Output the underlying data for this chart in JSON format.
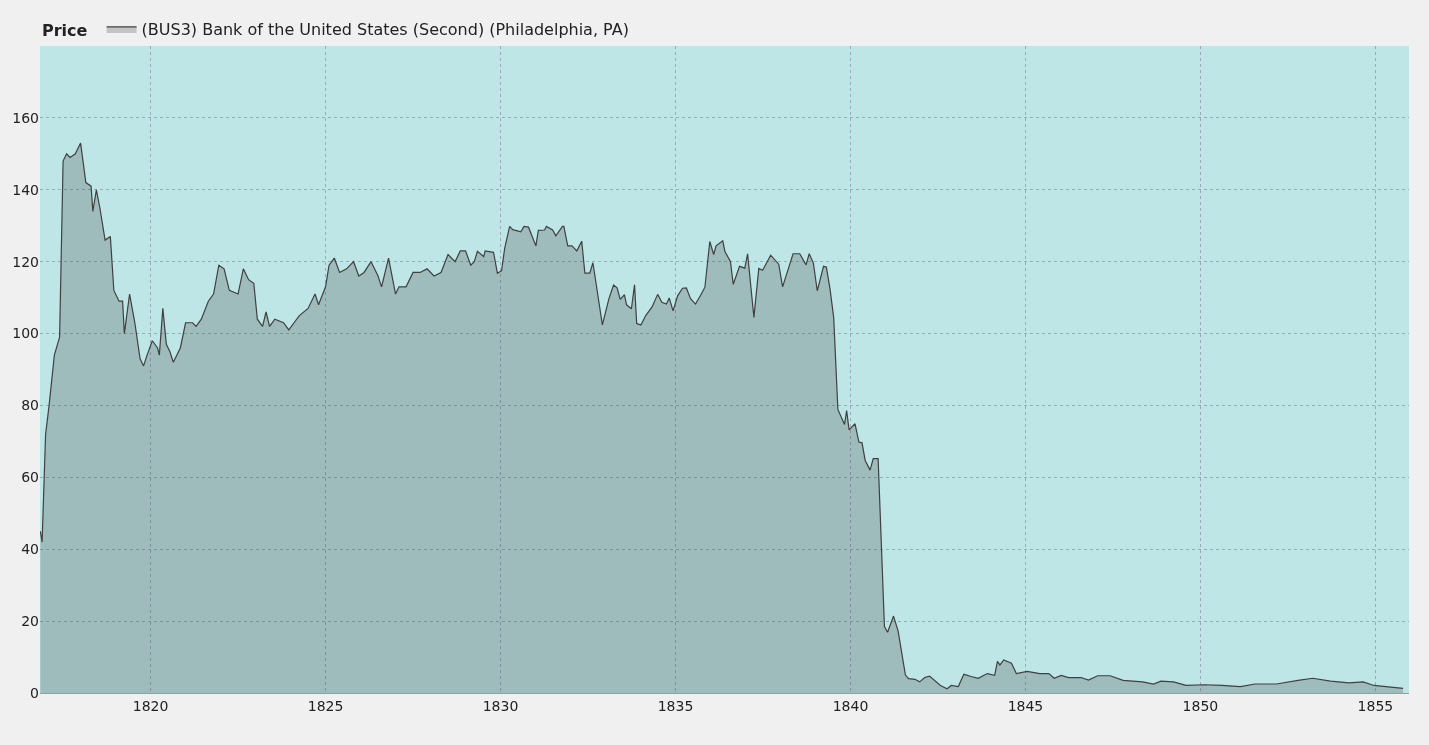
{
  "chart_data": {
    "type": "area",
    "ylabel": "Price",
    "legend": "top left",
    "grid": true,
    "line_style": "solid",
    "xlim": [
      1816.84,
      1855.96
    ],
    "xticks": [
      1820,
      1825,
      1830,
      1835,
      1840,
      1845,
      1850,
      1855
    ],
    "ylim": [
      0,
      180
    ],
    "yticks": [
      0,
      20,
      40,
      60,
      80,
      100,
      120,
      140,
      160
    ],
    "series": [
      {
        "name": "(BUS3) Bank of the United States (Second) (Philadelphia, PA)",
        "color": "#404040",
        "x": [
          1816.85,
          1816.9,
          1817.0,
          1817.1,
          1817.25,
          1817.4,
          1817.5,
          1817.6,
          1817.7,
          1817.85,
          1818.0,
          1818.15,
          1818.3,
          1818.35,
          1818.45,
          1818.55,
          1818.7,
          1818.85,
          1818.95,
          1819.1,
          1819.2,
          1819.25,
          1819.4,
          1819.55,
          1819.7,
          1819.8,
          1819.9,
          1820.05,
          1820.2,
          1820.25,
          1820.35,
          1820.45,
          1820.55,
          1820.65,
          1820.85,
          1821.0,
          1821.2,
          1821.3,
          1821.45,
          1821.65,
          1821.8,
          1821.95,
          1822.1,
          1822.25,
          1822.5,
          1822.65,
          1822.8,
          1822.95,
          1823.05,
          1823.2,
          1823.3,
          1823.4,
          1823.55,
          1823.8,
          1823.95,
          1824.1,
          1824.25,
          1824.5,
          1824.7,
          1824.8,
          1825.0,
          1825.1,
          1825.25,
          1825.4,
          1825.6,
          1825.8,
          1825.95,
          1826.1,
          1826.3,
          1826.5,
          1826.6,
          1826.8,
          1827.0,
          1827.1,
          1827.3,
          1827.5,
          1827.7,
          1827.9,
          1828.1,
          1828.3,
          1828.5,
          1828.7,
          1828.85,
          1829.0,
          1829.15,
          1829.25,
          1829.34,
          1829.52,
          1829.56,
          1829.8,
          1829.91,
          1830.03,
          1830.12,
          1830.26,
          1830.35,
          1830.58,
          1830.67,
          1830.8,
          1831.01,
          1831.08,
          1831.26,
          1831.31,
          1831.49,
          1831.58,
          1831.77,
          1831.81,
          1831.92,
          1832.04,
          1832.18,
          1832.32,
          1832.41,
          1832.55,
          1832.64,
          1832.91,
          1833.1,
          1833.23,
          1833.33,
          1833.42,
          1833.54,
          1833.6,
          1833.74,
          1833.83,
          1833.89,
          1834.01,
          1834.15,
          1834.33,
          1834.49,
          1834.61,
          1834.74,
          1834.82,
          1834.93,
          1835.06,
          1835.2,
          1835.31,
          1835.43,
          1835.57,
          1835.71,
          1835.84,
          1835.98,
          1836.09,
          1836.16,
          1836.35,
          1836.41,
          1836.57,
          1836.65,
          1836.83,
          1836.98,
          1837.06,
          1837.24,
          1837.38,
          1837.49,
          1837.72,
          1837.95,
          1838.06,
          1838.36,
          1838.55,
          1838.73,
          1838.82,
          1838.94,
          1839.05,
          1839.23,
          1839.31,
          1839.41,
          1839.52,
          1839.64,
          1839.83,
          1839.89,
          1839.96,
          1840.13,
          1840.24,
          1840.33,
          1840.42,
          1840.56,
          1840.65,
          1840.79,
          1840.97,
          1841.06,
          1841.23,
          1841.36,
          1841.57,
          1841.66,
          1841.84,
          1841.98,
          1842.12,
          1842.26,
          1842.57,
          1842.76,
          1842.88,
          1843.08,
          1843.24,
          1843.45,
          1843.65,
          1843.91,
          1844.12,
          1844.2,
          1844.27,
          1844.38,
          1844.6,
          1844.74,
          1845.05,
          1845.41,
          1845.67,
          1845.82,
          1846.02,
          1846.23,
          1846.59,
          1846.8,
          1847.06,
          1847.42,
          1847.79,
          1848.35,
          1848.66,
          1848.87,
          1849.23,
          1849.59,
          1850.11,
          1850.62,
          1851.14,
          1851.56,
          1852.17,
          1852.79,
          1853.21,
          1853.72,
          1854.24,
          1854.65,
          1854.96,
          1855.79
        ],
        "values": [
          45,
          42,
          72,
          80,
          94,
          99,
          148,
          150,
          149,
          150,
          153,
          142,
          141,
          134,
          140,
          135,
          126,
          127,
          112,
          109,
          109,
          100,
          111,
          103,
          93,
          91,
          94,
          98,
          96,
          94,
          107,
          97,
          95,
          92,
          96,
          103,
          103,
          102,
          104,
          109,
          111,
          119,
          118,
          112,
          111,
          118,
          115,
          114,
          104,
          102,
          106,
          102,
          104,
          103,
          101,
          103,
          105,
          107,
          111,
          108,
          113,
          119,
          121,
          117,
          118,
          120,
          116,
          117,
          120,
          116,
          113,
          121,
          111,
          113,
          113,
          117,
          117,
          118,
          116,
          117,
          122,
          120,
          123,
          123,
          119,
          120,
          122.9,
          121.4,
          123,
          122.6,
          116.8,
          117.5,
          123.8,
          129.8,
          128.9,
          128.3,
          129.8,
          129.6,
          124.4,
          128.7,
          128.8,
          129.8,
          128.8,
          127.2,
          129.8,
          129.8,
          124.4,
          124.4,
          123,
          125.7,
          116.8,
          116.8,
          119.7,
          102.4,
          109.8,
          113.5,
          112.7,
          109.5,
          110.8,
          108,
          106.9,
          113.6,
          102.8,
          102.4,
          105,
          107.4,
          110.9,
          108.7,
          108.2,
          109.9,
          106.3,
          110.5,
          112.6,
          112.7,
          109.7,
          108.2,
          110.5,
          112.9,
          125.6,
          122,
          124.4,
          125.8,
          122.9,
          120,
          113.7,
          118.7,
          118.2,
          122.2,
          104.5,
          118.1,
          117.6,
          121.8,
          119.3,
          113,
          122.2,
          122.2,
          119.1,
          122.2,
          119.6,
          111.9,
          118.7,
          118.5,
          112.8,
          104.5,
          78.9,
          74.7,
          78.6,
          73.2,
          74.9,
          69.8,
          69.6,
          64.7,
          62,
          65.2,
          65.2,
          18.5,
          16.9,
          21.4,
          17.3,
          5,
          4,
          3.8,
          3.1,
          4.3,
          4.7,
          2.1,
          1.2,
          2.1,
          1.8,
          5.2,
          4.6,
          4.1,
          5.4,
          4.9,
          8.8,
          7.8,
          9.2,
          8.3,
          5.4,
          6,
          5.4,
          5.4,
          4.1,
          4.9,
          4.3,
          4.3,
          3.6,
          4.8,
          4.8,
          3.5,
          3.1,
          2.5,
          3.3,
          3.1,
          2.1,
          2.3,
          2.1,
          1.8,
          2.5,
          2.5,
          3.5,
          4.1,
          3.3,
          2.8,
          3.1,
          2.1,
          1.3
        ]
      }
    ]
  }
}
